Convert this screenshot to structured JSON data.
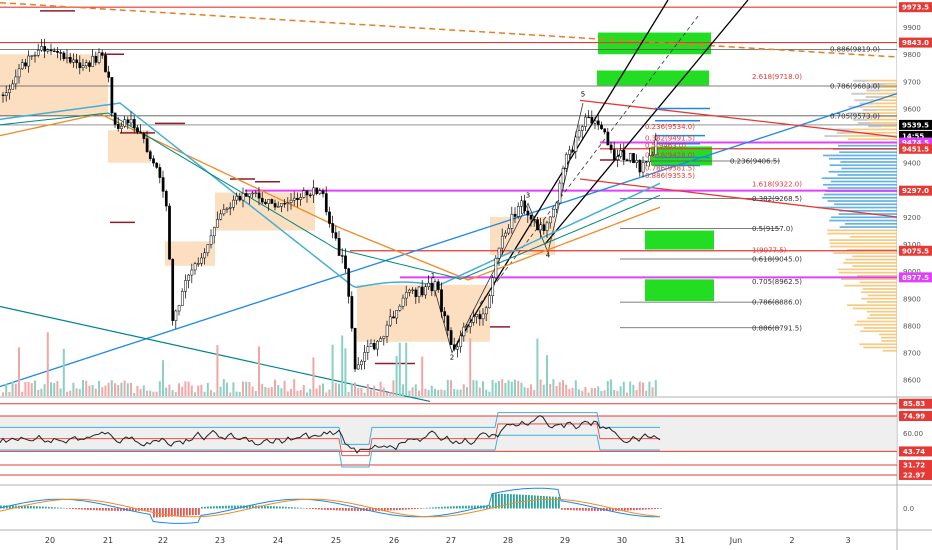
{
  "chart_data": {
    "type": "candlestick",
    "instrument_note": "",
    "x_labels": [
      "20",
      "21",
      "22",
      "23",
      "24",
      "25",
      "26",
      "27",
      "28",
      "29",
      "30",
      "31",
      "Jun",
      "2",
      "3"
    ],
    "price_axis": {
      "ylim": [
        8540,
        10000
      ],
      "ticks": [
        8600,
        8700,
        8800,
        8900,
        9000,
        9100,
        9200,
        9300,
        9400,
        9500,
        9600,
        9700,
        9800,
        9900
      ]
    },
    "price_tags": [
      {
        "text": "9973.5",
        "price": 9973.5,
        "color": "#e53935"
      },
      {
        "text": "9843.0",
        "price": 9843.0,
        "color": "#e53935"
      },
      {
        "text": "9539.5",
        "price": 9539.5,
        "color": "#000000"
      },
      {
        "text": "14:55",
        "price": 9500,
        "color": "#000000"
      },
      {
        "text": "9474.5",
        "price": 9474.5,
        "color": "#e040fb"
      },
      {
        "text": "9451.5",
        "price": 9451.5,
        "color": "#e53935"
      },
      {
        "text": "9297.0",
        "price": 9297.0,
        "color": "#e53935"
      },
      {
        "text": "9075.5",
        "price": 9075.5,
        "color": "#e53935"
      },
      {
        "text": "8977.5",
        "price": 8977.5,
        "color": "#e040fb"
      }
    ],
    "fib_labels": [
      {
        "text": "0.886(9819.0)",
        "price": 9819.0,
        "color": "#333"
      },
      {
        "text": "0.786(9683.0)",
        "price": 9683.0,
        "color": "#333"
      },
      {
        "text": "2.618(9718.0)",
        "price": 9718.0,
        "color": "#e53935"
      },
      {
        "text": "0.705(9573.0)",
        "price": 9573.0,
        "color": "#333"
      },
      {
        "text": "0.236(9534.0)",
        "price": 9534.0,
        "color": "#e53935"
      },
      {
        "text": "0.382(9491.5)",
        "price": 9491.5,
        "color": "#e53935"
      },
      {
        "text": "0.5(9463.0)",
        "price": 9463.0,
        "color": "#e53935"
      },
      {
        "text": "0.618(9428.0)",
        "price": 9428.0,
        "color": "#e53935"
      },
      {
        "text": "0.236(9406.5)",
        "price": 9406.5,
        "color": "#333"
      },
      {
        "text": "0.786(9381.5)",
        "price": 9381.5,
        "color": "#e53935"
      },
      {
        "text": "0.886(9353.5)",
        "price": 9353.5,
        "color": "#e53935"
      },
      {
        "text": "1.618(9322.0)",
        "price": 9322.0,
        "color": "#e53935"
      },
      {
        "text": "0.382(9268.5)",
        "price": 9268.5,
        "color": "#333"
      },
      {
        "text": "0.5(9157.0)",
        "price": 9157.0,
        "color": "#333"
      },
      {
        "text": "1(9077.5)",
        "price": 9077.5,
        "color": "#e53935"
      },
      {
        "text": "0.618(9045.0)",
        "price": 9045.0,
        "color": "#333"
      },
      {
        "text": "0.705(8962.5)",
        "price": 8962.5,
        "color": "#333"
      },
      {
        "text": "0.786(8886.0)",
        "price": 8886.0,
        "color": "#333"
      },
      {
        "text": "0.886(8791.5)",
        "price": 8791.5,
        "color": "#333"
      }
    ],
    "wave_labels": [
      "1",
      "2",
      "3",
      "4",
      "5"
    ],
    "rsi": {
      "ylim": [
        15,
        90
      ],
      "ticks": [
        60.0
      ],
      "tags": [
        {
          "text": "85.83",
          "value": 85.83
        },
        {
          "text": "74.99",
          "value": 74.99
        },
        {
          "text": "43.74",
          "value": 43.74
        },
        {
          "text": "31.72",
          "value": 31.72
        },
        {
          "text": "22.97",
          "value": 22.97
        }
      ]
    },
    "macd": {
      "ticks": [
        0.0
      ]
    },
    "grid": false
  }
}
